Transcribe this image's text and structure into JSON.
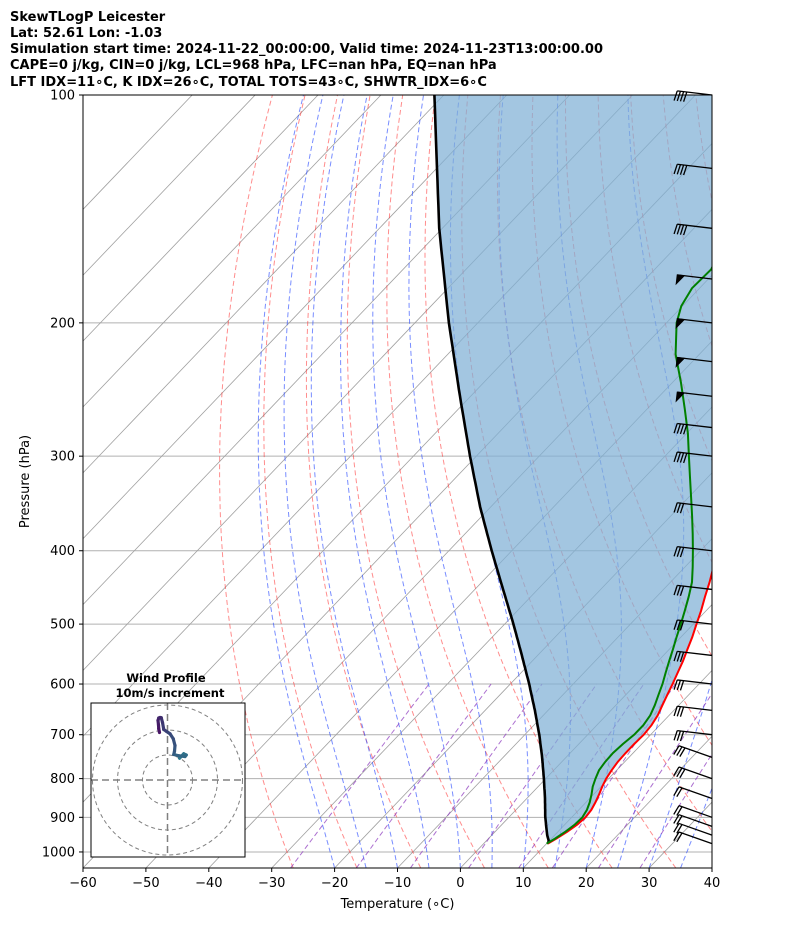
{
  "header": {
    "lines": [
      "SkewTLogP Leicester",
      "Lat: 52.61   Lon: -1.03",
      "Simulation start time: 2024-11-22_00:00:00, Valid time: 2024-11-23T13:00:00.00",
      "CAPE=0 j/kg, CIN=0 j/kg, LCL=968 hPa, LFC=nan hPa, EQ=nan hPa",
      "LFT IDX=11∘C, K IDX=26∘C, TOTAL TOTS=43∘C, SHWTR_IDX=6∘C"
    ]
  },
  "colors": {
    "temperature": "#ff0000",
    "dewpoint": "#008000",
    "parcel": "#000000",
    "cape_fill": "#7fb0d6",
    "isotherm": "#a0a0a0",
    "isobar": "#b0b0b0",
    "dry_adiabat": "#ff3030",
    "moist_adiabat": "#3050ff",
    "mixing_ratio": "#9040c0"
  },
  "chart_data": [
    {
      "type": "line",
      "subtype": "skew-t-log-p",
      "xlabel": "Temperature (∘C)",
      "ylabel": "Pressure (hPa)",
      "xlim": [
        -60,
        40
      ],
      "ylim": [
        1050,
        100
      ],
      "y_scale": "log",
      "x_ticks": [
        "−60",
        "−50",
        "−40",
        "−30",
        "−20",
        "−10",
        "0",
        "10",
        "20",
        "30",
        "40"
      ],
      "y_ticks": [
        "100",
        "200",
        "300",
        "400",
        "500",
        "600",
        "700",
        "800",
        "900",
        "1000"
      ],
      "grid": true,
      "series": [
        {
          "key": "temperature",
          "pressure": [
            975,
            960,
            940,
            920,
            900,
            880,
            860,
            840,
            820,
            800,
            780,
            760,
            740,
            720,
            700,
            680,
            660,
            640,
            620,
            600,
            580,
            560,
            540,
            520,
            500,
            480,
            460,
            440,
            420,
            400,
            380,
            360,
            340,
            320,
            300,
            280,
            260,
            240,
            220,
            200,
            190,
            180,
            170,
            160,
            150,
            140,
            130,
            120,
            110,
            100
          ],
          "temperature": [
            10.2,
            10.8,
            11.5,
            12.0,
            12.2,
            12.0,
            11.5,
            10.9,
            10.2,
            9.6,
            9.2,
            8.9,
            8.8,
            8.8,
            8.9,
            8.7,
            8.2,
            7.4,
            6.6,
            5.8,
            4.9,
            4.0,
            2.9,
            1.8,
            0.5,
            -0.8,
            -2.3,
            -3.8,
            -5.5,
            -7.2,
            -9.0,
            -10.9,
            -13.0,
            -15.4,
            -18.0,
            -21.0,
            -24.4,
            -28.3,
            -32.6,
            -37.6,
            -40.8,
            -44.0,
            -45.2,
            -44.2,
            -42.8,
            -41.8,
            -41.2,
            -40.8,
            -40.6,
            -40.5
          ]
        },
        {
          "key": "dewpoint",
          "pressure": [
            975,
            960,
            940,
            920,
            900,
            880,
            860,
            840,
            820,
            800,
            780,
            760,
            740,
            720,
            700,
            680,
            660,
            640,
            620,
            600,
            580,
            560,
            540,
            520,
            500,
            480,
            460,
            440,
            420,
            400,
            380,
            360,
            340,
            320,
            300,
            280,
            260,
            240,
            220,
            200,
            190,
            180,
            170,
            160,
            150,
            140,
            130,
            120,
            110,
            100
          ],
          "temperature": [
            10.0,
            10.6,
            11.2,
            11.6,
            11.7,
            11.3,
            10.6,
            9.7,
            8.7,
            7.9,
            7.2,
            6.9,
            6.8,
            7.0,
            7.4,
            7.4,
            7.0,
            6.2,
            5.2,
            4.2,
            3.0,
            1.8,
            0.6,
            -0.7,
            -2.0,
            -3.4,
            -4.9,
            -6.6,
            -8.8,
            -11.2,
            -13.8,
            -16.6,
            -19.6,
            -22.8,
            -26.2,
            -29.8,
            -34.0,
            -38.6,
            -43.8,
            -48.4,
            -50.2,
            -51.2,
            -51.0,
            -52.6,
            -54.4,
            -55.6,
            -55.2,
            -53.8,
            -52.4,
            -51.2
          ]
        },
        {
          "key": "parcel",
          "pressure": [
            975,
            968,
            950,
            900,
            850,
            800,
            750,
            700,
            650,
            600,
            550,
            500,
            450,
            400,
            350,
            300,
            250,
            200,
            150,
            100
          ],
          "temperature": [
            10.2,
            10.0,
            8.8,
            5.8,
            2.9,
            -0.3,
            -3.8,
            -7.7,
            -12.1,
            -17.0,
            -22.5,
            -28.6,
            -35.5,
            -43.2,
            -51.7,
            -61.0,
            -71.7,
            -84.6,
            -100.5,
            -121.5
          ]
        }
      ]
    },
    {
      "type": "line",
      "subtype": "hodograph",
      "title": "Wind Profile",
      "subtitle": "10m/s increment",
      "rings_ms": [
        10,
        20,
        30
      ],
      "u": [
        4.8,
        6.5,
        7.5,
        7.0,
        4.5,
        2.5,
        2.8,
        3.0,
        2.3,
        1.0,
        -0.5,
        -1.5,
        -2.0,
        -2.5,
        -3.0,
        -3.5,
        -3.8,
        -3.6,
        -3.5,
        -3.2
      ],
      "v": [
        8.7,
        10.5,
        10.0,
        9.4,
        9.7,
        10.2,
        11.5,
        13.8,
        16.5,
        18.5,
        19.5,
        20.2,
        23.0,
        24.9,
        25.0,
        24.8,
        23.8,
        22.0,
        20.5,
        19.0
      ]
    }
  ]
}
